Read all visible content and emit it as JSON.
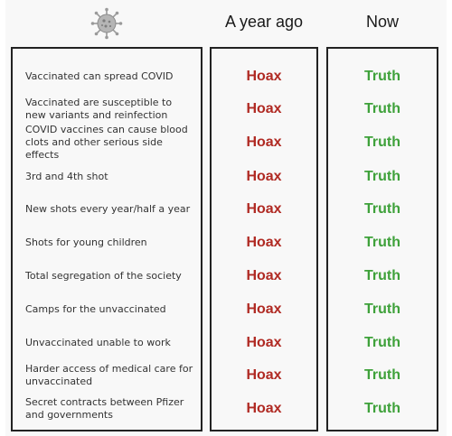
{
  "header": {
    "icon": "virus-icon",
    "col_a_year_ago": "A year ago",
    "col_now": "Now"
  },
  "colors": {
    "hoax": "#b02a23",
    "truth": "#3ea13a"
  },
  "rows": [
    {
      "item": "Vaccinated can spread COVID",
      "a_year_ago": "Hoax",
      "now": "Truth"
    },
    {
      "item": "Vaccinated are susceptible to new variants and reinfection",
      "a_year_ago": "Hoax",
      "now": "Truth"
    },
    {
      "item": "COVID vaccines can cause blood clots and other serious side effects",
      "a_year_ago": "Hoax",
      "now": "Truth"
    },
    {
      "item": "3rd and 4th shot",
      "a_year_ago": "Hoax",
      "now": "Truth"
    },
    {
      "item": "New shots every year/half a year",
      "a_year_ago": "Hoax",
      "now": "Truth"
    },
    {
      "item": "Shots for young children",
      "a_year_ago": "Hoax",
      "now": "Truth"
    },
    {
      "item": "Total segregation of the society",
      "a_year_ago": "Hoax",
      "now": "Truth"
    },
    {
      "item": "Camps for the unvaccinated",
      "a_year_ago": "Hoax",
      "now": "Truth"
    },
    {
      "item": "Unvaccinated unable to work",
      "a_year_ago": "Hoax",
      "now": "Truth"
    },
    {
      "item": "Harder access of medical care for unvaccinated",
      "a_year_ago": "Hoax",
      "now": "Truth"
    },
    {
      "item": "Secret contracts between Pfizer and governments",
      "a_year_ago": "Hoax",
      "now": "Truth"
    }
  ]
}
